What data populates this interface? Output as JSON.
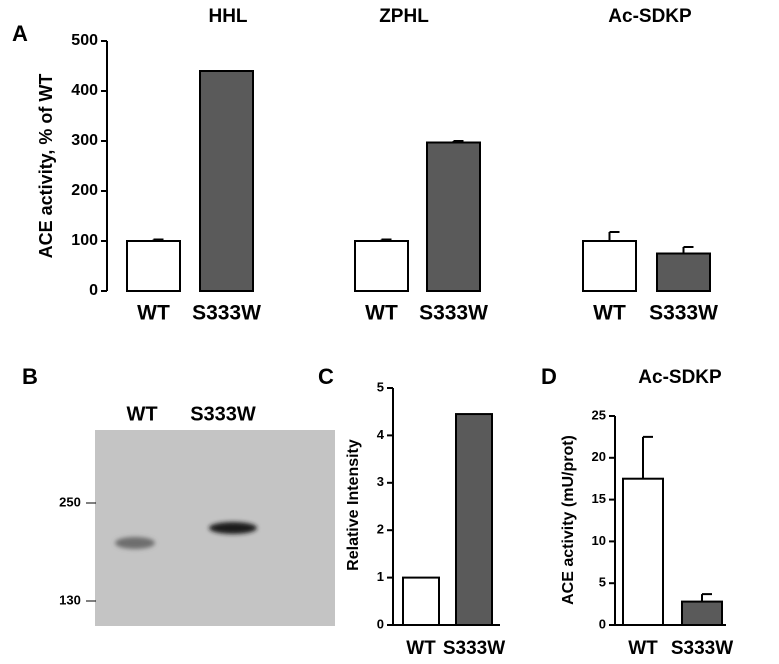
{
  "chart_data": [
    {
      "type": "bar",
      "panel_label": "A",
      "ylabel": "ACE activity,  % of WT",
      "ylim": [
        0,
        500
      ],
      "yticks": [
        0,
        100,
        200,
        300,
        400,
        500
      ],
      "colors": [
        "#ffffff",
        "#5a5a5a"
      ],
      "groups": [
        {
          "title": "HHL",
          "categories": [
            "WT",
            "S333W"
          ],
          "values": [
            100,
            440
          ],
          "errors": [
            3,
            0
          ]
        },
        {
          "title": "ZPHL",
          "categories": [
            "WT",
            "S333W"
          ],
          "values": [
            100,
            297
          ],
          "errors": [
            3,
            3
          ]
        },
        {
          "title": "Ac-SDKP",
          "categories": [
            "WT",
            "S333W"
          ],
          "values": [
            100,
            75
          ],
          "errors": [
            18,
            13
          ]
        }
      ]
    },
    {
      "type": "bar",
      "panel_label": "C",
      "ylabel": "Relative Intensity",
      "ylim": [
        0,
        5
      ],
      "yticks": [
        0,
        1,
        2,
        3,
        4,
        5
      ],
      "colors": [
        "#ffffff",
        "#5a5a5a"
      ],
      "categories": [
        "WT",
        "S333W"
      ],
      "values": [
        1,
        4.45
      ]
    },
    {
      "type": "bar",
      "panel_label": "D",
      "title": "Ac-SDKP",
      "ylabel": "ACE activity (mU/prot)",
      "ylim": [
        0,
        25
      ],
      "yticks": [
        0,
        5,
        10,
        15,
        20,
        25
      ],
      "colors": [
        "#ffffff",
        "#5a5a5a"
      ],
      "categories": [
        "WT",
        "S333W"
      ],
      "values": [
        17.5,
        2.8
      ],
      "errors": [
        5,
        0.9
      ]
    }
  ],
  "blot": {
    "panel_label": "B",
    "lanes": [
      "WT",
      "S333W"
    ],
    "markers": [
      "250",
      "130"
    ]
  }
}
